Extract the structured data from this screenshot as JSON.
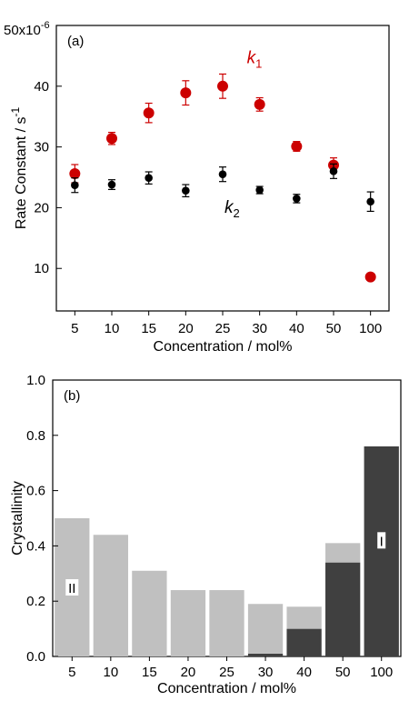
{
  "chart_data": [
    {
      "type": "scatter",
      "panel_label": "(a)",
      "title": "",
      "xlabel": "Concentration / mol%",
      "ylabel": "Rate Constant / s",
      "ylabel_superscript": "-1",
      "ytop_label": "50x10",
      "ytop_superscript": "-6",
      "categories": [
        "5",
        "10",
        "15",
        "20",
        "25",
        "30",
        "40",
        "50",
        "100"
      ],
      "yticks": [
        "10",
        "20",
        "30",
        "40"
      ],
      "ylim": [
        3,
        50
      ],
      "grid": false,
      "series": [
        {
          "name": "k",
          "subscript": "1",
          "color": "#cc0000",
          "values": [
            25.6,
            31.4,
            35.6,
            38.9,
            40.0,
            37.0,
            30.1,
            27.0,
            8.6
          ],
          "errors": [
            1.5,
            1.0,
            1.6,
            2.0,
            2.0,
            1.1,
            0.8,
            1.2,
            0.0
          ]
        },
        {
          "name": "k",
          "subscript": "2",
          "color": "#000000",
          "values": [
            23.7,
            23.8,
            24.9,
            22.8,
            25.5,
            22.9,
            21.5,
            26.0,
            21.0
          ],
          "errors": [
            1.2,
            0.8,
            1.0,
            1.0,
            1.2,
            0.6,
            0.7,
            1.2,
            1.6
          ]
        }
      ]
    },
    {
      "type": "bar",
      "panel_label": "(b)",
      "title": "",
      "xlabel": "Concentration / mol%",
      "ylabel": "Crystallinity",
      "categories": [
        "5",
        "10",
        "15",
        "20",
        "25",
        "30",
        "40",
        "50",
        "100"
      ],
      "yticks": [
        "0.0",
        "0.2",
        "0.4",
        "0.6",
        "0.8",
        "1.0"
      ],
      "ylim": [
        0,
        1.0
      ],
      "grid": false,
      "colors": {
        "form_I": "#404040",
        "form_II": "#c0c0c0"
      },
      "series": [
        {
          "name": "I",
          "values": [
            0,
            0,
            0,
            0,
            0,
            0.01,
            0.1,
            0.34,
            0.76
          ]
        },
        {
          "name": "II",
          "values": [
            0.5,
            0.44,
            0.31,
            0.24,
            0.24,
            0.18,
            0.08,
            0.07,
            0.0
          ]
        }
      ],
      "annotations": [
        {
          "text": "II",
          "category": "5",
          "value": 0.25
        },
        {
          "text": "I",
          "category": "100",
          "value": 0.42
        }
      ]
    }
  ]
}
